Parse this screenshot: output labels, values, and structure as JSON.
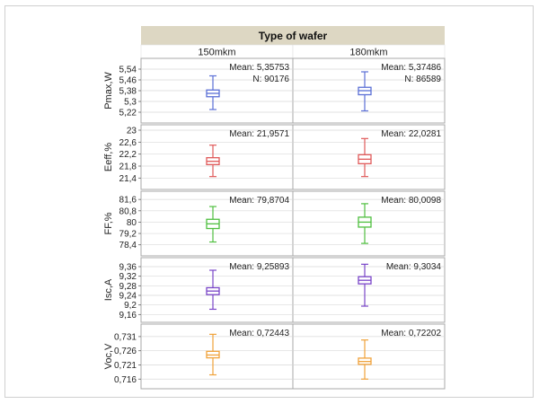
{
  "chart_data": {
    "type": "boxplot",
    "header": "Type of wafer",
    "categories": [
      "150mkm",
      "180mkm"
    ],
    "colors": {
      "header_bg": "#ddd7c3",
      "subheader_bg": "#ffffff",
      "panel_border": "#a8a8a8",
      "grid": "#d9d9d9",
      "Pmax": "#5b6fd6",
      "Eeff": "#e05a5a",
      "FF": "#4fbf3f",
      "Isc": "#7a45c8",
      "Voc": "#f0a23a"
    },
    "panels": [
      {
        "key": "Pmax",
        "ylabel": "Pmax,W",
        "ylim": [
          5.18,
          5.58
        ],
        "ticks": [
          5.22,
          5.3,
          5.38,
          5.46,
          5.54
        ],
        "tick_labels": [
          "5,22",
          "5,3",
          "5,38",
          "5,46",
          "5,54"
        ],
        "groups": [
          {
            "min": 5.24,
            "q1": 5.335,
            "median": 5.36,
            "q3": 5.385,
            "max": 5.49,
            "mean_label": "Mean: 5,35753",
            "n_label": "N: 90176"
          },
          {
            "min": 5.23,
            "q1": 5.35,
            "median": 5.38,
            "q3": 5.405,
            "max": 5.52,
            "mean_label": "Mean: 5,37486",
            "n_label": "N: 86589"
          }
        ]
      },
      {
        "key": "Eeff",
        "ylabel": "Eeff,%",
        "ylim": [
          21.2,
          23.0
        ],
        "ticks": [
          21.4,
          21.8,
          22.2,
          22.6,
          23
        ],
        "tick_labels": [
          "21,4",
          "21,8",
          "22,2",
          "22,6",
          "23"
        ],
        "groups": [
          {
            "min": 21.45,
            "q1": 21.85,
            "median": 21.96,
            "q3": 22.08,
            "max": 22.5,
            "mean_label": "Mean: 21,9571"
          },
          {
            "min": 21.45,
            "q1": 21.88,
            "median": 22.03,
            "q3": 22.18,
            "max": 22.72,
            "mean_label": "Mean: 22,0281"
          }
        ]
      },
      {
        "key": "FF",
        "ylabel": "FF,%",
        "ylim": [
          78.0,
          81.8
        ],
        "ticks": [
          78.4,
          79.2,
          80,
          80.8,
          81.6
        ],
        "tick_labels": [
          "78,4",
          "79,2",
          "80",
          "80,8",
          "81,6"
        ],
        "groups": [
          {
            "min": 78.6,
            "q1": 79.55,
            "median": 79.88,
            "q3": 80.2,
            "max": 81.1,
            "mean_label": "Mean: 79,8704"
          },
          {
            "min": 78.5,
            "q1": 79.65,
            "median": 80.0,
            "q3": 80.35,
            "max": 81.3,
            "mean_label": "Mean: 80,0098"
          }
        ]
      },
      {
        "key": "Isc",
        "ylabel": "Isc,A",
        "ylim": [
          9.15,
          9.375
        ],
        "ticks": [
          9.16,
          9.2,
          9.24,
          9.28,
          9.32,
          9.36
        ],
        "tick_labels": [
          "9,16",
          "9,2",
          "9,24",
          "9,28",
          "9,32",
          "9,36"
        ],
        "groups": [
          {
            "min": 9.182,
            "q1": 9.243,
            "median": 9.258,
            "q3": 9.272,
            "max": 9.345,
            "mean_label": "Mean: 9,25893"
          },
          {
            "min": 9.195,
            "q1": 9.288,
            "median": 9.303,
            "q3": 9.318,
            "max": 9.37,
            "mean_label": "Mean: 9,3034"
          }
        ]
      },
      {
        "key": "Voc",
        "ylabel": "Voc,V",
        "ylim": [
          0.7145,
          0.7335
        ],
        "ticks": [
          0.716,
          0.721,
          0.726,
          0.731
        ],
        "tick_labels": [
          "0,716",
          "0,721",
          "0,726",
          "0,731"
        ],
        "groups": [
          {
            "min": 0.7175,
            "q1": 0.7235,
            "median": 0.7245,
            "q3": 0.7258,
            "max": 0.7318,
            "mean_label": "Mean: 0,72443"
          },
          {
            "min": 0.716,
            "q1": 0.7212,
            "median": 0.7222,
            "q3": 0.7234,
            "max": 0.7298,
            "mean_label": "Mean: 0,72202"
          }
        ]
      }
    ]
  }
}
